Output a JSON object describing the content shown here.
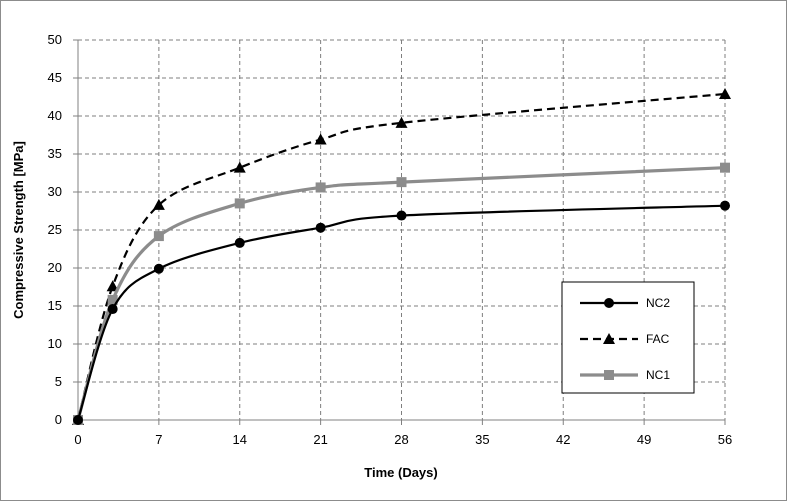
{
  "chart_data": {
    "type": "line",
    "xlabel": "Time (Days)",
    "ylabel": "Compressive Strength [MPa]",
    "xlim": [
      0,
      56
    ],
    "ylim": [
      0,
      50
    ],
    "x_ticks": [
      "0",
      "7",
      "14",
      "21",
      "28",
      "35",
      "42",
      "49",
      "56"
    ],
    "y_ticks": [
      "0",
      "5",
      "10",
      "15",
      "20",
      "25",
      "30",
      "35",
      "40",
      "45",
      "50"
    ],
    "grid": "dashed",
    "legend_position": "bottom-right",
    "series": [
      {
        "name": "NC2",
        "marker": "circle",
        "line": "solid",
        "color": "#000000",
        "x": [
          0,
          3,
          7,
          14,
          21,
          28,
          56
        ],
        "values": [
          0,
          14.6,
          19.9,
          23.3,
          25.3,
          26.9,
          28.2
        ]
      },
      {
        "name": "FAC",
        "marker": "triangle",
        "line": "dashed",
        "color": "#000000",
        "x": [
          0,
          3,
          7,
          14,
          21,
          28,
          56
        ],
        "values": [
          0,
          17.6,
          28.3,
          33.2,
          36.9,
          39.1,
          42.9
        ]
      },
      {
        "name": "NC1",
        "marker": "square",
        "line": "solid",
        "color": "#8c8c8c",
        "x": [
          0,
          3,
          7,
          14,
          21,
          28,
          56
        ],
        "values": [
          0,
          15.8,
          24.2,
          28.5,
          30.6,
          31.3,
          33.2
        ]
      }
    ]
  }
}
